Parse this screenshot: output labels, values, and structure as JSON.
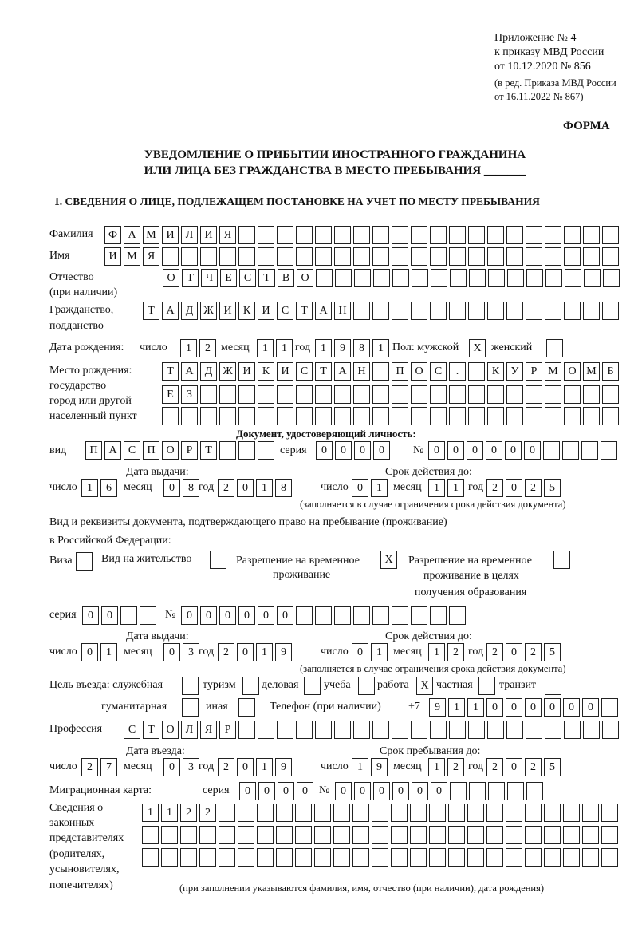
{
  "header": {
    "appendix": "Приложение № 4",
    "order": "к приказу МВД России",
    "date": "от 10.12.2020 № 856",
    "rev1": "(в ред. Приказа МВД России",
    "rev2": "от 16.11.2022 № 867)",
    "form": "ФОРМА"
  },
  "title": {
    "line1": "УВЕДОМЛЕНИЕ О ПРИБЫТИИ ИНОСТРАННОГО ГРАЖДАНИНА",
    "line2": "ИЛИ ЛИЦА БЕЗ ГРАЖДАНСТВА В МЕСТО ПРЕБЫВАНИЯ _______"
  },
  "section1": "1. СВЕДЕНИЯ О ЛИЦЕ, ПОДЛЕЖАЩЕМ ПОСТАНОВКЕ НА УЧЕТ ПО МЕСТУ ПРЕБЫВАНИЯ",
  "labels": {
    "surname": "Фамилия",
    "name": "Имя",
    "patronymic": "Отчество",
    "patronymic2": "(при наличии)",
    "citizenship": "Гражданство,",
    "citizenship2": "подданство",
    "birth_date": "Дата рождения:",
    "day": "число",
    "month": "месяц",
    "year": "год",
    "sex": "Пол: мужской",
    "female": "женский",
    "birthplace": "Место рождения:",
    "bp2": "государство",
    "bp3": "город или другой",
    "bp4": "населенный пункт",
    "id_doc": "Документ, удостоверяющий личность:",
    "kind": "вид",
    "series": "серия",
    "number": "№",
    "issue_date": "Дата выдачи:",
    "valid_until": "Срок действия до:",
    "valid_note": "(заполняется в случае ограничения срока действия документа)",
    "right_doc1": "Вид и реквизиты документа, подтверждающего право на пребывание (проживание)",
    "right_doc2": "в Российской Федерации:",
    "visa": "Виза",
    "residence": "Вид на жительство",
    "trp1": "Разрешение на временное",
    "trp2": "проживание",
    "trpe1": "Разрешение на временное",
    "trpe2": "проживание в целях",
    "trpe3": "получения образования",
    "purpose": "Цель въезда: служебная",
    "tourism": "туризм",
    "business": "деловая",
    "study": "учеба",
    "work": "работа",
    "private": "частная",
    "transit": "транзит",
    "humanitarian": "гуманитарная",
    "other": "иная",
    "phone": "Телефон (при наличии)",
    "phone_prefix": "+7",
    "profession": "Профессия",
    "entry_date": "Дата въезда:",
    "stay_until": "Срок пребывания до:",
    "migration_card": "Миграционная карта:",
    "rep1": "Сведения о",
    "rep2": "законных",
    "rep3": "представителях",
    "rep4": "(родителях,",
    "rep5": "усыновителях,",
    "rep6": "попечителях)",
    "rep_note": "(при заполнении указываются фамилия, имя, отчество (при наличии), дата рождения)"
  },
  "fields": {
    "surname": "ФАМИЛИЯ",
    "name": "ИМЯ",
    "patronymic": "ОТЧЕСТВО",
    "citizenship": "ТАДЖИКИСТАН",
    "birth_day": "12",
    "birth_month": "11",
    "birth_year": "1981",
    "male": "X",
    "female": "",
    "birthplace1": "ТАДЖИКИСТАН ПОС. КУРМОМБ",
    "birthplace2": "ЕЗ",
    "birthplace3": "",
    "doc_kind": "ПАСПОРТ",
    "doc_series": "0000",
    "doc_number": "000000",
    "doc_issue_day": "16",
    "doc_issue_month": "08",
    "doc_issue_year": "2018",
    "doc_exp_day": "01",
    "doc_exp_month": "11",
    "doc_exp_year": "2025",
    "visa": "",
    "residence": "",
    "trp": "X",
    "trpe": "",
    "right_series": "00",
    "right_number": "000000",
    "right_issue_day": "01",
    "right_issue_month": "03",
    "right_issue_year": "2019",
    "right_exp_day": "01",
    "right_exp_month": "12",
    "right_exp_year": "2025",
    "p_service": "",
    "p_tourism": "",
    "p_business": "",
    "p_study": "",
    "p_work": "X",
    "p_private": "",
    "p_transit": "",
    "p_humanitarian": "",
    "p_other": "",
    "phone": "911000000",
    "profession": "СТОЛЯР",
    "entry_day": "27",
    "entry_month": "03",
    "entry_year": "2019",
    "stay_day": "19",
    "stay_month": "12",
    "stay_year": "2025",
    "mc_series": "0000",
    "mc_number": "000000",
    "rep1": "1122",
    "rep2": "",
    "rep3": ""
  }
}
